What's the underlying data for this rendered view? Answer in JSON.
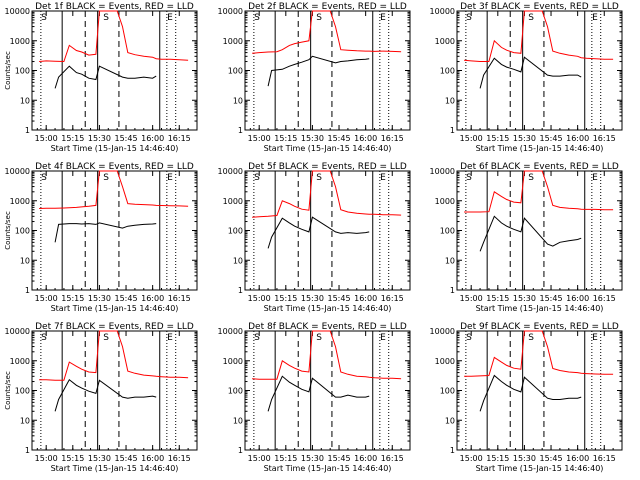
{
  "colors": {
    "events": "#000000",
    "lld": "#ff0000",
    "axis": "#000000",
    "background": "#ffffff"
  },
  "chart_data": [
    {
      "type": "line",
      "title": "Det 1f BLACK = Events, RED = LLD",
      "xlabel": "Start Time (15-Jan-15 14:46:40)",
      "ylabel": "Counts/sec",
      "yscale": "log",
      "ylim": [
        1,
        10000
      ],
      "xlim": [
        "14:52",
        "16:25"
      ],
      "x_ticks": [
        "15:00",
        "15:15",
        "15:30",
        "15:45",
        "16:00",
        "16:15"
      ],
      "y_ticks": [
        "1",
        "10",
        "100",
        "1000",
        "10000"
      ],
      "markers": [
        "S",
        "S",
        "E"
      ],
      "series": [
        {
          "color": "red",
          "x": [
            "14:56",
            "15:00",
            "15:05",
            "15:10",
            "15:13",
            "15:17",
            "15:20",
            "15:24",
            "15:28",
            "15:30",
            "15:34",
            "15:40",
            "15:43",
            "15:46",
            "15:50",
            "15:55",
            "16:00",
            "16:02",
            "16:05",
            "16:10",
            "16:15",
            "16:20"
          ],
          "y": [
            200,
            210,
            205,
            200,
            700,
            470,
            420,
            330,
            350,
            10000,
            10000,
            10000,
            3000,
            400,
            340,
            300,
            280,
            250,
            240,
            240,
            230,
            220
          ]
        },
        {
          "color": "black",
          "x": [
            "15:05",
            "15:07",
            "15:13",
            "15:17",
            "15:20",
            "15:24",
            "15:28",
            "15:30",
            "15:43",
            "15:46",
            "15:50",
            "15:55",
            "16:00",
            "16:02"
          ],
          "y": [
            25,
            60,
            140,
            85,
            75,
            55,
            50,
            140,
            60,
            55,
            55,
            60,
            55,
            65
          ]
        }
      ]
    },
    {
      "type": "line",
      "title": "Det 2f BLACK = Events, RED = LLD",
      "xlabel": "Start Time (15-Jan-15 14:46:40)",
      "ylabel": "",
      "yscale": "log",
      "ylim": [
        1,
        10000
      ],
      "xlim": [
        "14:52",
        "16:25"
      ],
      "x_ticks": [
        "15:00",
        "15:15",
        "15:30",
        "15:45",
        "16:00",
        "16:15"
      ],
      "y_ticks": [
        "1",
        "10",
        "100",
        "1000",
        "10000"
      ],
      "markers": [
        "S",
        "S",
        "E"
      ],
      "series": [
        {
          "color": "red",
          "x": [
            "14:56",
            "15:00",
            "15:05",
            "15:10",
            "15:13",
            "15:17",
            "15:20",
            "15:24",
            "15:28",
            "15:30",
            "15:34",
            "15:40",
            "15:43",
            "15:46",
            "15:50",
            "15:55",
            "16:00",
            "16:02",
            "16:05",
            "16:10",
            "16:15",
            "16:20"
          ],
          "y": [
            380,
            400,
            420,
            430,
            500,
            700,
            800,
            900,
            1000,
            10000,
            10000,
            10000,
            3000,
            500,
            480,
            460,
            450,
            450,
            440,
            450,
            440,
            430
          ]
        },
        {
          "color": "black",
          "x": [
            "15:05",
            "15:07",
            "15:13",
            "15:17",
            "15:20",
            "15:24",
            "15:28",
            "15:30",
            "15:43",
            "15:46",
            "15:50",
            "15:55",
            "16:00",
            "16:02"
          ],
          "y": [
            30,
            100,
            110,
            140,
            160,
            190,
            230,
            300,
            180,
            200,
            210,
            230,
            240,
            250
          ]
        }
      ]
    },
    {
      "type": "line",
      "title": "Det 3f BLACK = Events, RED = LLD",
      "xlabel": "Start Time (15-Jan-15 14:46:40)",
      "ylabel": "",
      "yscale": "log",
      "ylim": [
        1,
        10000
      ],
      "xlim": [
        "14:52",
        "16:25"
      ],
      "x_ticks": [
        "15:00",
        "15:15",
        "15:30",
        "15:45",
        "16:00",
        "16:15"
      ],
      "y_ticks": [
        "1",
        "10",
        "100",
        "1000",
        "10000"
      ],
      "markers": [
        "S",
        "S",
        "E"
      ],
      "series": [
        {
          "color": "red",
          "x": [
            "14:56",
            "15:00",
            "15:05",
            "15:10",
            "15:13",
            "15:17",
            "15:20",
            "15:24",
            "15:28",
            "15:30",
            "15:34",
            "15:40",
            "15:43",
            "15:46",
            "15:50",
            "15:55",
            "16:00",
            "16:02",
            "16:05",
            "16:10",
            "16:15",
            "16:20"
          ],
          "y": [
            220,
            210,
            200,
            200,
            1000,
            600,
            480,
            400,
            380,
            10000,
            10000,
            10000,
            3000,
            450,
            380,
            330,
            300,
            270,
            260,
            250,
            240,
            240
          ]
        },
        {
          "color": "black",
          "x": [
            "15:05",
            "15:07",
            "15:13",
            "15:17",
            "15:20",
            "15:24",
            "15:28",
            "15:30",
            "15:43",
            "15:46",
            "15:50",
            "15:55",
            "16:00",
            "16:02"
          ],
          "y": [
            25,
            70,
            260,
            160,
            130,
            110,
            90,
            280,
            70,
            65,
            65,
            70,
            70,
            60
          ]
        }
      ]
    },
    {
      "type": "line",
      "title": "Det 4f BLACK = Events, RED = LLD",
      "xlabel": "Start Time (15-Jan-15 14:46:40)",
      "ylabel": "Counts/sec",
      "yscale": "log",
      "ylim": [
        1,
        10000
      ],
      "xlim": [
        "14:52",
        "16:25"
      ],
      "x_ticks": [
        "15:00",
        "15:15",
        "15:30",
        "15:45",
        "16:00",
        "16:15"
      ],
      "y_ticks": [
        "1",
        "10",
        "100",
        "1000",
        "10000"
      ],
      "markers": [
        "S",
        "S",
        "E"
      ],
      "series": [
        {
          "color": "red",
          "x": [
            "14:56",
            "15:00",
            "15:05",
            "15:10",
            "15:13",
            "15:17",
            "15:20",
            "15:24",
            "15:28",
            "15:30",
            "15:34",
            "15:40",
            "15:43",
            "15:46",
            "15:50",
            "15:55",
            "16:00",
            "16:02",
            "16:05",
            "16:10",
            "16:15",
            "16:20"
          ],
          "y": [
            550,
            560,
            560,
            570,
            580,
            600,
            620,
            650,
            700,
            10000,
            10000,
            10000,
            3000,
            800,
            760,
            740,
            720,
            700,
            690,
            680,
            670,
            650
          ]
        },
        {
          "color": "black",
          "x": [
            "15:05",
            "15:07",
            "15:13",
            "15:17",
            "15:20",
            "15:24",
            "15:28",
            "15:30",
            "15:43",
            "15:46",
            "15:50",
            "15:55",
            "16:00",
            "16:02"
          ],
          "y": [
            40,
            160,
            170,
            170,
            165,
            170,
            160,
            180,
            120,
            140,
            150,
            160,
            165,
            170
          ]
        }
      ]
    },
    {
      "type": "line",
      "title": "Det 5f BLACK = Events, RED = LLD",
      "xlabel": "Start Time (15-Jan-15 14:46:40)",
      "ylabel": "",
      "yscale": "log",
      "ylim": [
        1,
        10000
      ],
      "xlim": [
        "14:52",
        "16:25"
      ],
      "x_ticks": [
        "15:00",
        "15:15",
        "15:30",
        "15:45",
        "16:00",
        "16:15"
      ],
      "y_ticks": [
        "1",
        "10",
        "100",
        "1000",
        "10000"
      ],
      "markers": [
        "S",
        "S",
        "E"
      ],
      "series": [
        {
          "color": "red",
          "x": [
            "14:56",
            "15:00",
            "15:05",
            "15:10",
            "15:13",
            "15:17",
            "15:20",
            "15:24",
            "15:28",
            "15:30",
            "15:34",
            "15:40",
            "15:43",
            "15:46",
            "15:50",
            "15:55",
            "16:00",
            "16:02",
            "16:05",
            "16:10",
            "16:15",
            "16:20"
          ],
          "y": [
            280,
            290,
            300,
            320,
            1000,
            800,
            650,
            520,
            480,
            10000,
            10000,
            10000,
            3000,
            500,
            420,
            380,
            360,
            350,
            350,
            340,
            340,
            330
          ]
        },
        {
          "color": "black",
          "x": [
            "15:05",
            "15:07",
            "15:13",
            "15:17",
            "15:20",
            "15:24",
            "15:28",
            "15:30",
            "15:43",
            "15:46",
            "15:50",
            "15:55",
            "16:00",
            "16:02"
          ],
          "y": [
            25,
            60,
            260,
            180,
            140,
            110,
            90,
            280,
            90,
            80,
            85,
            80,
            85,
            90
          ]
        }
      ]
    },
    {
      "type": "line",
      "title": "Det 6f BLACK = Events, RED = LLD",
      "xlabel": "Start Time (15-Jan-15 14:46:40)",
      "ylabel": "",
      "yscale": "log",
      "ylim": [
        1,
        10000
      ],
      "xlim": [
        "14:52",
        "16:25"
      ],
      "x_ticks": [
        "15:00",
        "15:15",
        "15:30",
        "15:45",
        "16:00",
        "16:15"
      ],
      "y_ticks": [
        "1",
        "10",
        "100",
        "1000",
        "10000"
      ],
      "markers": [
        "S",
        "S",
        "E"
      ],
      "series": [
        {
          "color": "red",
          "x": [
            "14:56",
            "15:00",
            "15:05",
            "15:10",
            "15:13",
            "15:17",
            "15:20",
            "15:24",
            "15:28",
            "15:30",
            "15:34",
            "15:40",
            "15:43",
            "15:46",
            "15:50",
            "15:55",
            "16:00",
            "16:02",
            "16:05",
            "16:10",
            "16:15",
            "16:20"
          ],
          "y": [
            420,
            420,
            420,
            430,
            2000,
            1400,
            1100,
            900,
            850,
            10000,
            10000,
            10000,
            3000,
            700,
            600,
            560,
            540,
            520,
            510,
            510,
            500,
            500
          ]
        },
        {
          "color": "black",
          "x": [
            "15:05",
            "15:07",
            "15:13",
            "15:17",
            "15:20",
            "15:24",
            "15:28",
            "15:30",
            "15:43",
            "15:46",
            "15:50",
            "15:55",
            "16:00",
            "16:02"
          ],
          "y": [
            20,
            40,
            300,
            180,
            140,
            110,
            90,
            260,
            35,
            30,
            40,
            45,
            50,
            55
          ]
        }
      ]
    },
    {
      "type": "line",
      "title": "Det 7f BLACK = Events, RED = LLD",
      "xlabel": "Start Time (15-Jan-15 14:46:40)",
      "ylabel": "Counts/sec",
      "yscale": "log",
      "ylim": [
        1,
        10000
      ],
      "xlim": [
        "14:52",
        "16:25"
      ],
      "x_ticks": [
        "15:00",
        "15:15",
        "15:30",
        "15:45",
        "16:00",
        "16:15"
      ],
      "y_ticks": [
        "1",
        "10",
        "100",
        "1000",
        "10000"
      ],
      "markers": [
        "S",
        "S",
        "E"
      ],
      "series": [
        {
          "color": "red",
          "x": [
            "14:56",
            "15:00",
            "15:05",
            "15:10",
            "15:13",
            "15:17",
            "15:20",
            "15:24",
            "15:28",
            "15:30",
            "15:34",
            "15:40",
            "15:43",
            "15:46",
            "15:50",
            "15:55",
            "16:00",
            "16:02",
            "16:05",
            "16:10",
            "16:15",
            "16:20"
          ],
          "y": [
            230,
            230,
            220,
            220,
            900,
            650,
            520,
            420,
            400,
            10000,
            10000,
            10000,
            3000,
            450,
            380,
            330,
            310,
            300,
            290,
            280,
            280,
            270
          ]
        },
        {
          "color": "black",
          "x": [
            "15:05",
            "15:07",
            "15:13",
            "15:17",
            "15:20",
            "15:24",
            "15:28",
            "15:30",
            "15:43",
            "15:46",
            "15:50",
            "15:55",
            "16:00",
            "16:02"
          ],
          "y": [
            20,
            50,
            230,
            150,
            120,
            95,
            80,
            220,
            60,
            55,
            60,
            60,
            65,
            60
          ]
        }
      ]
    },
    {
      "type": "line",
      "title": "Det 8f BLACK = Events, RED = LLD",
      "xlabel": "Start Time (15-Jan-15 14:46:40)",
      "ylabel": "",
      "yscale": "log",
      "ylim": [
        1,
        10000
      ],
      "xlim": [
        "14:52",
        "16:25"
      ],
      "x_ticks": [
        "15:00",
        "15:15",
        "15:30",
        "15:45",
        "16:00",
        "16:15"
      ],
      "y_ticks": [
        "1",
        "10",
        "100",
        "1000",
        "10000"
      ],
      "markers": [
        "S",
        "S",
        "E"
      ],
      "series": [
        {
          "color": "red",
          "x": [
            "14:56",
            "15:00",
            "15:05",
            "15:10",
            "15:13",
            "15:17",
            "15:20",
            "15:24",
            "15:28",
            "15:30",
            "15:34",
            "15:40",
            "15:43",
            "15:46",
            "15:50",
            "15:55",
            "16:00",
            "16:02",
            "16:05",
            "16:10",
            "16:15",
            "16:20"
          ],
          "y": [
            250,
            240,
            240,
            240,
            1000,
            700,
            560,
            450,
            420,
            10000,
            10000,
            10000,
            3000,
            420,
            350,
            300,
            290,
            280,
            270,
            260,
            260,
            250
          ]
        },
        {
          "color": "black",
          "x": [
            "15:05",
            "15:07",
            "15:13",
            "15:17",
            "15:20",
            "15:24",
            "15:28",
            "15:30",
            "15:43",
            "15:46",
            "15:50",
            "15:55",
            "16:00",
            "16:02"
          ],
          "y": [
            20,
            50,
            300,
            190,
            150,
            110,
            90,
            260,
            60,
            60,
            70,
            60,
            60,
            65
          ]
        }
      ]
    },
    {
      "type": "line",
      "title": "Det 9f BLACK = Events, RED = LLD",
      "xlabel": "Start Time (15-Jan-15 14:46:40)",
      "ylabel": "",
      "yscale": "log",
      "ylim": [
        1,
        10000
      ],
      "xlim": [
        "14:52",
        "16:25"
      ],
      "x_ticks": [
        "15:00",
        "15:15",
        "15:30",
        "15:45",
        "16:00",
        "16:15"
      ],
      "y_ticks": [
        "1",
        "10",
        "100",
        "1000",
        "10000"
      ],
      "markers": [
        "S",
        "S",
        "E"
      ],
      "series": [
        {
          "color": "red",
          "x": [
            "14:56",
            "15:00",
            "15:05",
            "15:10",
            "15:13",
            "15:17",
            "15:20",
            "15:24",
            "15:28",
            "15:30",
            "15:34",
            "15:40",
            "15:43",
            "15:46",
            "15:50",
            "15:55",
            "16:00",
            "16:02",
            "16:05",
            "16:10",
            "16:15",
            "16:20"
          ],
          "y": [
            300,
            300,
            310,
            320,
            1300,
            900,
            700,
            560,
            520,
            10000,
            10000,
            10000,
            3000,
            550,
            470,
            420,
            400,
            380,
            370,
            360,
            350,
            350
          ]
        },
        {
          "color": "black",
          "x": [
            "15:05",
            "15:07",
            "15:13",
            "15:17",
            "15:20",
            "15:24",
            "15:28",
            "15:30",
            "15:43",
            "15:46",
            "15:50",
            "15:55",
            "16:00",
            "16:02"
          ],
          "y": [
            20,
            45,
            320,
            200,
            150,
            110,
            90,
            280,
            55,
            50,
            50,
            55,
            55,
            60
          ]
        }
      ]
    }
  ]
}
